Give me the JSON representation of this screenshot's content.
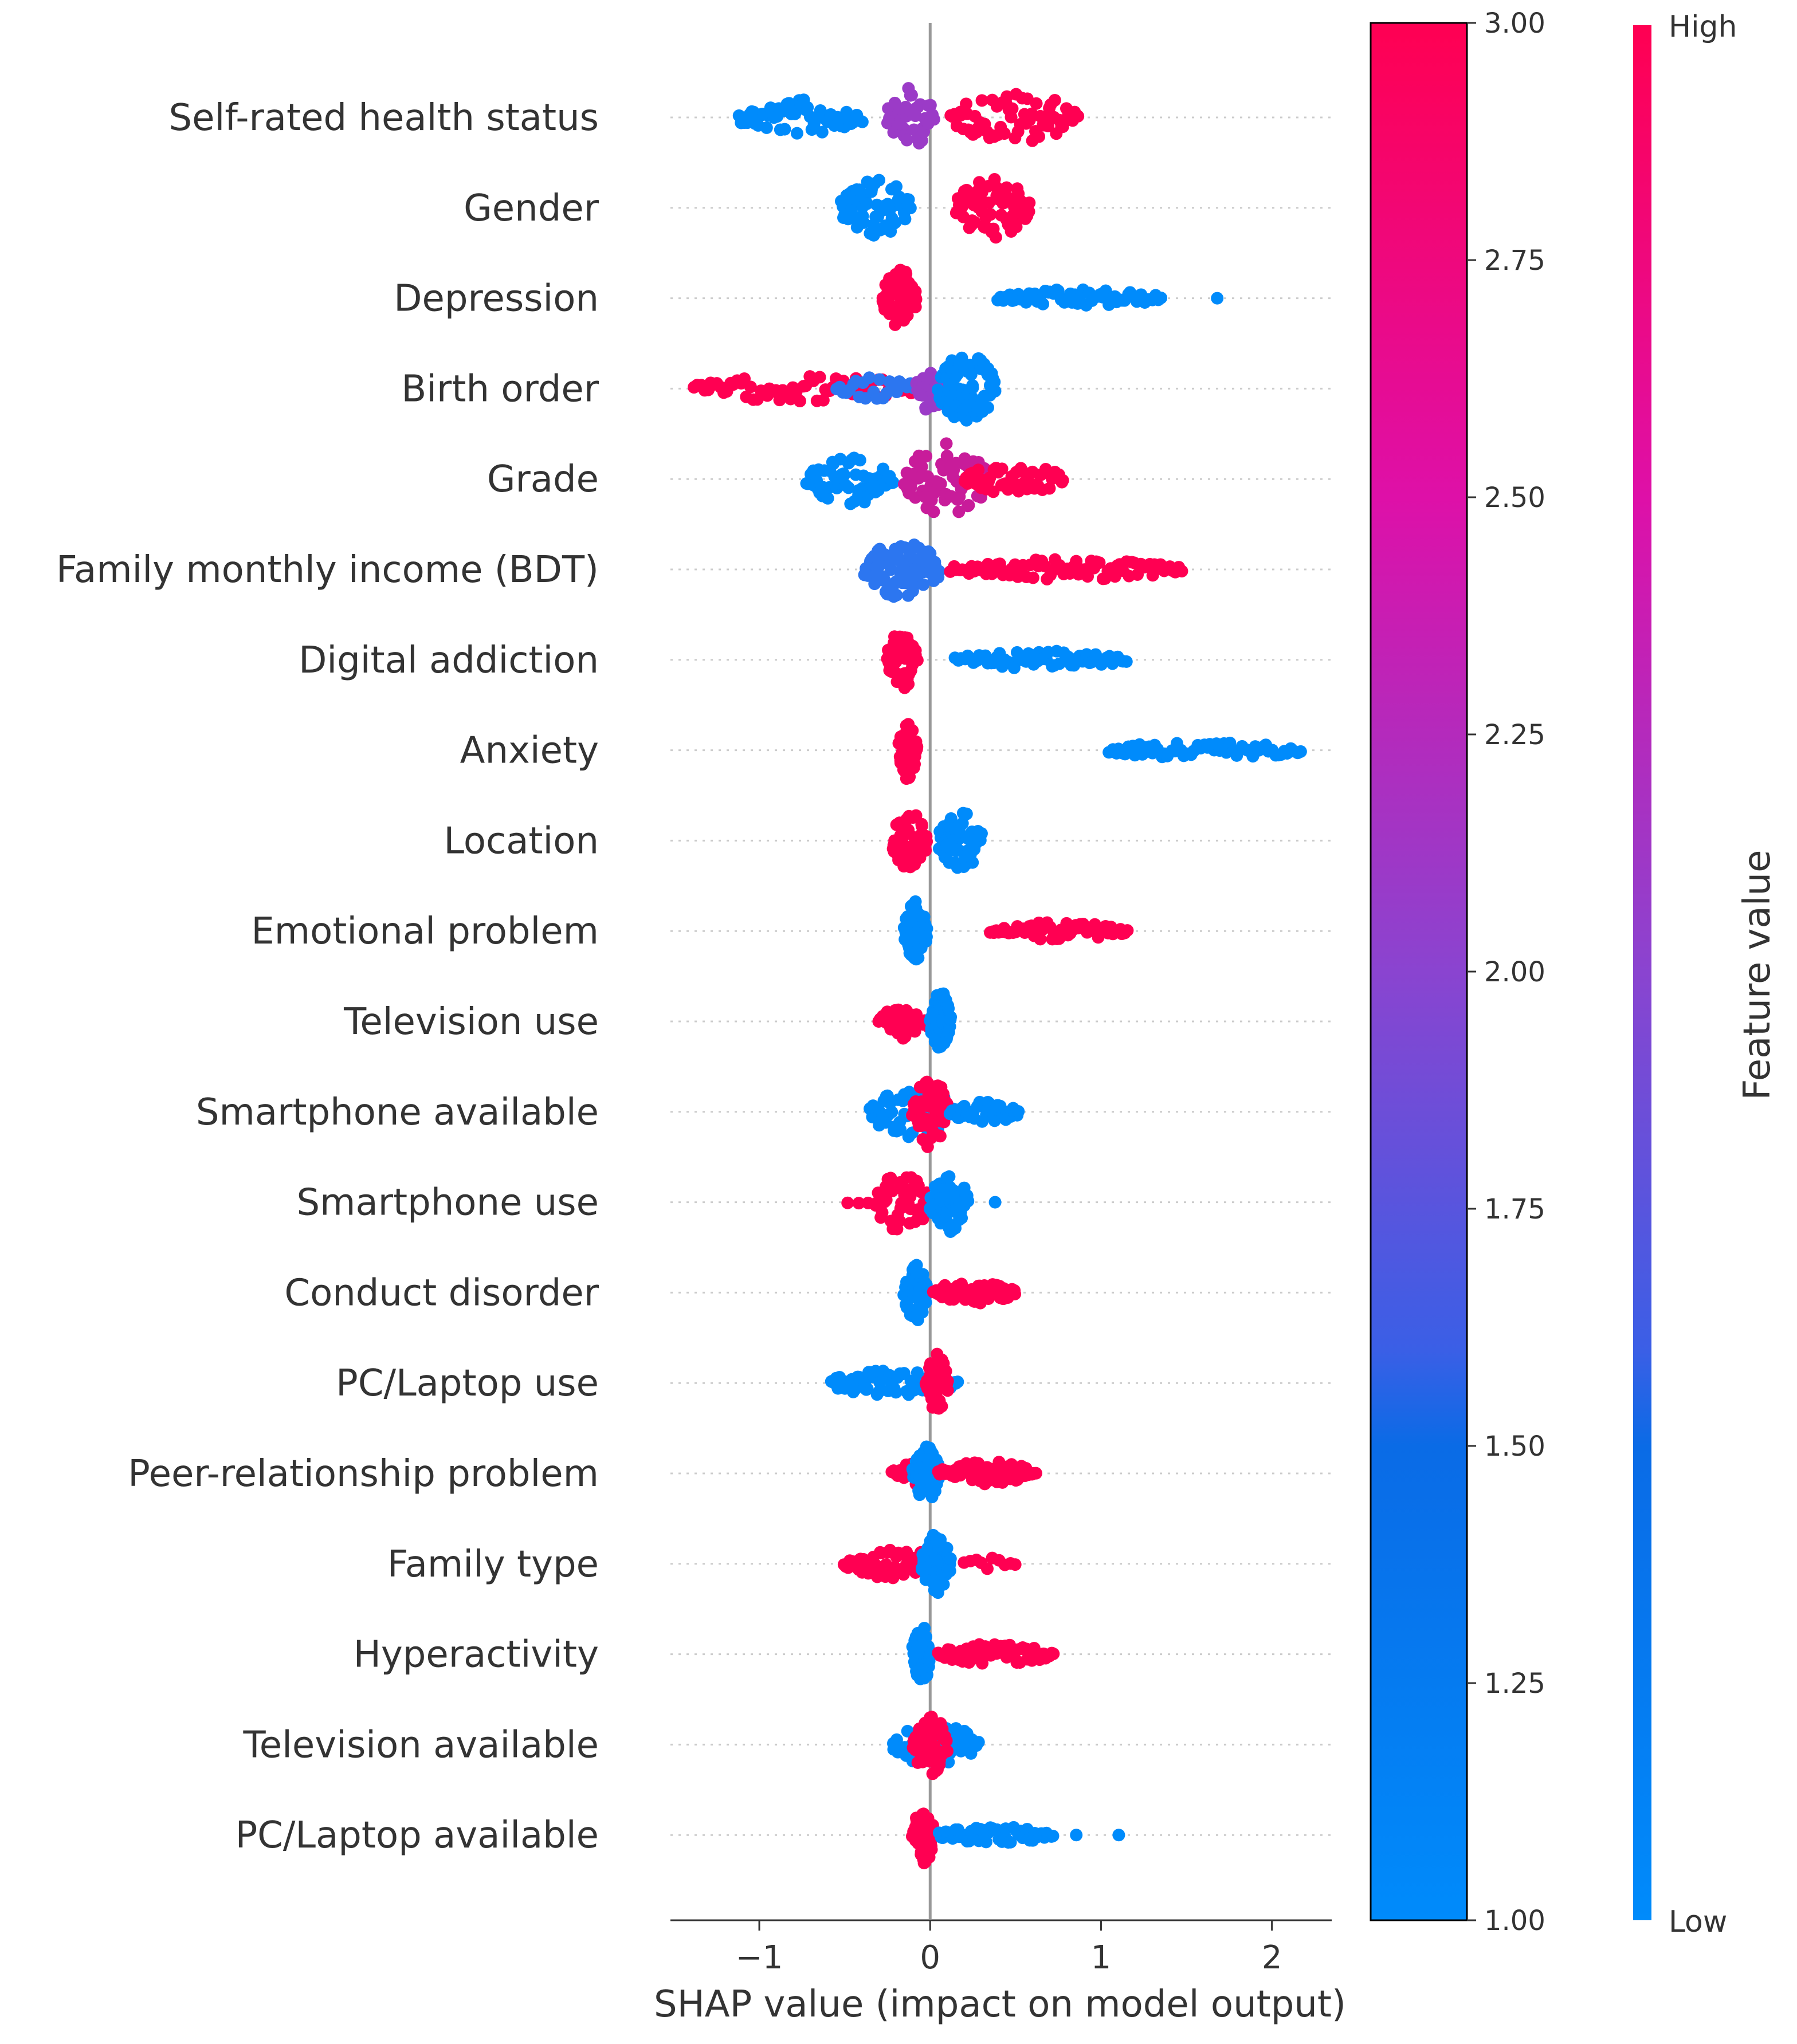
{
  "chart_data": {
    "type": "scatter",
    "subtype": "shap-beeswarm",
    "xlabel": "SHAP value (impact on model output)",
    "xlim": [
      -1.52,
      2.35
    ],
    "xticks": [
      {
        "value": -1,
        "label": "−1"
      },
      {
        "value": 0,
        "label": "0"
      },
      {
        "value": 1,
        "label": "1"
      },
      {
        "value": 2,
        "label": "2"
      }
    ],
    "features": [
      {
        "name": "Self-rated health status",
        "groups": [
          {
            "range": [
              -1.12,
              -0.4
            ],
            "color": "low",
            "dots": 60,
            "spread": 0.6
          },
          {
            "range": [
              -0.25,
              0.02
            ],
            "color": "mid",
            "dots": 40,
            "spread": 1.0
          },
          {
            "range": [
              0.12,
              0.86
            ],
            "color": "high",
            "dots": 70,
            "spread": 0.85
          }
        ]
      },
      {
        "name": "Gender",
        "groups": [
          {
            "range": [
              -0.52,
              -0.12
            ],
            "color": "low",
            "dots": 70,
            "spread": 1.0
          },
          {
            "range": [
              0.15,
              0.58
            ],
            "color": "high",
            "dots": 70,
            "spread": 1.0
          }
        ]
      },
      {
        "name": "Depression",
        "groups": [
          {
            "range": [
              -0.28,
              -0.08
            ],
            "color": "high",
            "dots": 60,
            "spread": 1.0
          },
          {
            "range": [
              0.4,
              1.35
            ],
            "color": "low",
            "dots": 60,
            "spread": 0.3
          },
          {
            "range": [
              1.68,
              1.68
            ],
            "color": "low",
            "dots": 1,
            "spread": 0.0
          }
        ]
      },
      {
        "name": "Birth order",
        "groups": [
          {
            "range": [
              -1.38,
              -0.05
            ],
            "color": "high",
            "dots": 70,
            "spread": 0.45
          },
          {
            "range": [
              -0.55,
              -0.08
            ],
            "color": "lowmid",
            "dots": 25,
            "spread": 0.4
          },
          {
            "range": [
              -0.08,
              0.08
            ],
            "color": "mid",
            "dots": 35,
            "spread": 0.8
          },
          {
            "range": [
              0.05,
              0.38
            ],
            "color": "low",
            "dots": 80,
            "spread": 1.25
          }
        ]
      },
      {
        "name": "Grade",
        "groups": [
          {
            "range": [
              -0.72,
              -0.22
            ],
            "color": "low",
            "dots": 60,
            "spread": 0.85
          },
          {
            "range": [
              -0.15,
              0.35
            ],
            "color": "highmid",
            "dots": 70,
            "spread": 1.2
          },
          {
            "range": [
              0.2,
              0.78
            ],
            "color": "high",
            "dots": 50,
            "spread": 0.55
          }
        ]
      },
      {
        "name": "Family monthly income (BDT)",
        "groups": [
          {
            "range": [
              -0.38,
              0.05
            ],
            "color": "lowmid",
            "dots": 80,
            "spread": 1.0
          },
          {
            "range": [
              0.12,
              1.47
            ],
            "color": "high",
            "dots": 80,
            "spread": 0.35
          }
        ]
      },
      {
        "name": "Digital addiction",
        "groups": [
          {
            "range": [
              -0.25,
              -0.08
            ],
            "color": "high",
            "dots": 60,
            "spread": 1.0
          },
          {
            "range": [
              0.15,
              1.15
            ],
            "color": "low",
            "dots": 60,
            "spread": 0.3
          }
        ]
      },
      {
        "name": "Anxiety",
        "groups": [
          {
            "range": [
              -0.18,
              -0.08
            ],
            "color": "high",
            "dots": 60,
            "spread": 1.0
          },
          {
            "range": [
              1.05,
              2.17
            ],
            "color": "low",
            "dots": 60,
            "spread": 0.3
          }
        ]
      },
      {
        "name": "Location",
        "groups": [
          {
            "range": [
              -0.22,
              -0.02
            ],
            "color": "high",
            "dots": 60,
            "spread": 1.0
          },
          {
            "range": [
              0.05,
              0.3
            ],
            "color": "low",
            "dots": 60,
            "spread": 1.0
          }
        ]
      },
      {
        "name": "Emotional problem",
        "groups": [
          {
            "range": [
              -0.15,
              -0.02
            ],
            "color": "low",
            "dots": 50,
            "spread": 1.0
          },
          {
            "range": [
              0.35,
              1.15
            ],
            "color": "high",
            "dots": 60,
            "spread": 0.3
          }
        ]
      },
      {
        "name": "Television use",
        "groups": [
          {
            "range": [
              -0.3,
              0.0
            ],
            "color": "high",
            "dots": 40,
            "spread": 0.6
          },
          {
            "range": [
              0.0,
              0.12
            ],
            "color": "low",
            "dots": 50,
            "spread": 1.0
          }
        ]
      },
      {
        "name": "Smartphone available",
        "groups": [
          {
            "range": [
              -0.35,
              0.15
            ],
            "color": "low",
            "dots": 60,
            "spread": 0.9
          },
          {
            "range": [
              -0.1,
              0.1
            ],
            "color": "high",
            "dots": 60,
            "spread": 1.2
          },
          {
            "range": [
              0.12,
              0.52
            ],
            "color": "low",
            "dots": 40,
            "spread": 0.4
          }
        ]
      },
      {
        "name": "Smartphone use",
        "groups": [
          {
            "range": [
              -0.48,
              -0.3
            ],
            "color": "high",
            "dots": 4,
            "spread": 0.2
          },
          {
            "range": [
              -0.32,
              0.0
            ],
            "color": "high",
            "dots": 60,
            "spread": 1.0
          },
          {
            "range": [
              0.0,
              0.22
            ],
            "color": "low",
            "dots": 60,
            "spread": 1.0
          },
          {
            "range": [
              0.38,
              0.38
            ],
            "color": "low",
            "dots": 1,
            "spread": 0.0
          }
        ]
      },
      {
        "name": "Conduct disorder",
        "groups": [
          {
            "range": [
              -0.15,
              -0.02
            ],
            "color": "low",
            "dots": 50,
            "spread": 1.0
          },
          {
            "range": [
              0.02,
              0.5
            ],
            "color": "high",
            "dots": 60,
            "spread": 0.4
          }
        ]
      },
      {
        "name": "PC/Laptop use",
        "groups": [
          {
            "range": [
              -0.58,
              0.16
            ],
            "color": "low",
            "dots": 70,
            "spread": 0.45
          },
          {
            "range": [
              -0.02,
              0.1
            ],
            "color": "high",
            "dots": 50,
            "spread": 1.0
          }
        ]
      },
      {
        "name": "Peer-relationship problem",
        "groups": [
          {
            "range": [
              -0.22,
              -0.02
            ],
            "color": "high",
            "dots": 20,
            "spread": 0.4
          },
          {
            "range": [
              -0.1,
              0.05
            ],
            "color": "low",
            "dots": 60,
            "spread": 1.0
          },
          {
            "range": [
              0.05,
              0.62
            ],
            "color": "high",
            "dots": 60,
            "spread": 0.4
          }
        ]
      },
      {
        "name": "Family type",
        "groups": [
          {
            "range": [
              -0.5,
              0.1
            ],
            "color": "high",
            "dots": 60,
            "spread": 0.5
          },
          {
            "range": [
              -0.05,
              0.12
            ],
            "color": "low",
            "dots": 60,
            "spread": 1.0
          },
          {
            "range": [
              0.2,
              0.5
            ],
            "color": "high",
            "dots": 10,
            "spread": 0.2
          }
        ]
      },
      {
        "name": "Hyperactivity",
        "groups": [
          {
            "range": [
              -0.1,
              0.0
            ],
            "color": "low",
            "dots": 50,
            "spread": 1.0
          },
          {
            "range": [
              0.05,
              0.72
            ],
            "color": "high",
            "dots": 60,
            "spread": 0.35
          }
        ]
      },
      {
        "name": "Television available",
        "groups": [
          {
            "range": [
              -0.22,
              0.28
            ],
            "color": "low",
            "dots": 50,
            "spread": 0.7
          },
          {
            "range": [
              -0.1,
              0.1
            ],
            "color": "high",
            "dots": 50,
            "spread": 1.0
          }
        ]
      },
      {
        "name": "PC/Laptop available",
        "groups": [
          {
            "range": [
              -0.1,
              0.02
            ],
            "color": "high",
            "dots": 50,
            "spread": 1.0
          },
          {
            "range": [
              0.05,
              0.72
            ],
            "color": "low",
            "dots": 50,
            "spread": 0.3
          },
          {
            "range": [
              0.86,
              1.1
            ],
            "color": "low",
            "dots": 2,
            "spread": 0.0
          }
        ]
      }
    ],
    "colorbar_main": {
      "ticks": [
        "1.00",
        "1.25",
        "1.50",
        "1.75",
        "2.00",
        "2.25",
        "2.50",
        "2.75",
        "3.00"
      ],
      "min": 1.0,
      "max": 3.0
    },
    "colorbar_feature": {
      "title": "Feature value",
      "high_label": "High",
      "low_label": "Low"
    }
  },
  "colors": {
    "low": "#008bfb",
    "lowmid": "#2c76f0",
    "mid": "#9b3bc7",
    "highmid": "#c81c9a",
    "high": "#ff0052",
    "axis": "#333333",
    "zero_line": "#999999",
    "grid_dots": "#cccccc"
  }
}
